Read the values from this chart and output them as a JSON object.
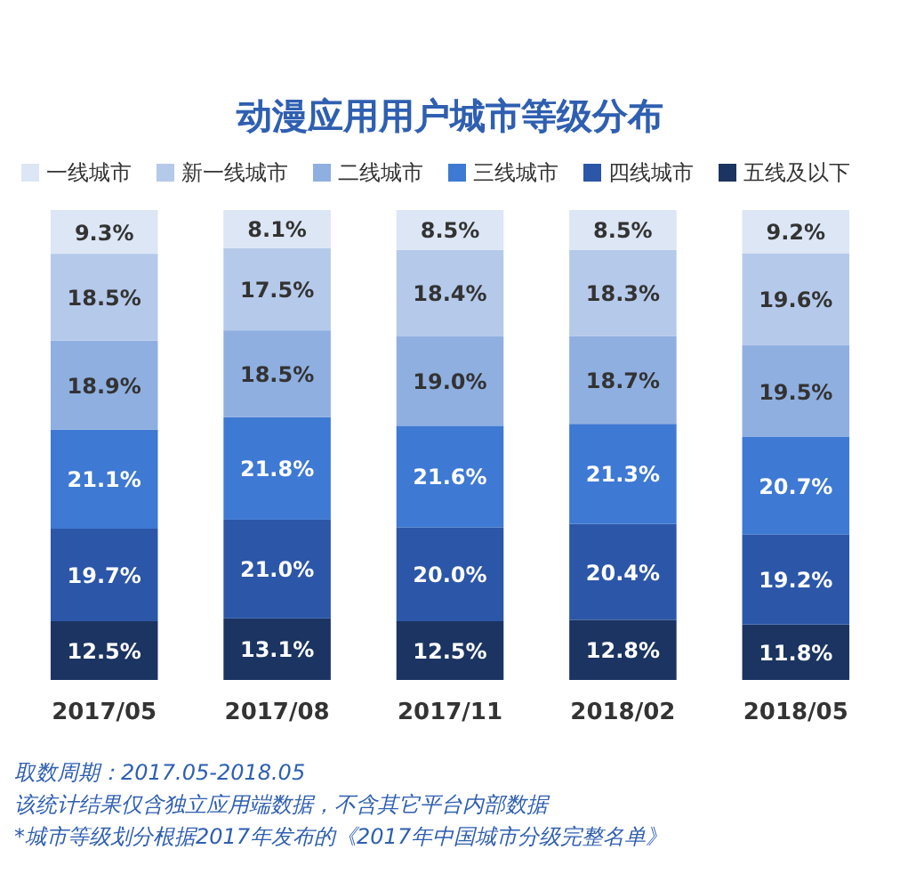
{
  "chart_data": {
    "type": "bar",
    "stacked": true,
    "legend": "top",
    "title": "动漫应用用户城市等级分布",
    "categories": [
      "2017/05",
      "2017/08",
      "2017/11",
      "2018/02",
      "2018/05"
    ],
    "series": [
      {
        "name": "五线及以下",
        "color": "#1b3461",
        "values": [
          12.5,
          13.1,
          12.5,
          12.8,
          11.8
        ],
        "value_labels": [
          "12.5%",
          "13.1%",
          "12.5%",
          "12.8%",
          "11.8%"
        ]
      },
      {
        "name": "四线城市",
        "color": "#2c56a8",
        "values": [
          19.7,
          21.0,
          20.0,
          20.4,
          19.2
        ],
        "value_labels": [
          "19.7%",
          "21.0%",
          "20.0%",
          "20.4%",
          "19.2%"
        ]
      },
      {
        "name": "三线城市",
        "color": "#3e79d3",
        "values": [
          21.1,
          21.8,
          21.6,
          21.3,
          20.7
        ],
        "value_labels": [
          "21.1%",
          "21.8%",
          "21.6%",
          "21.3%",
          "20.7%"
        ]
      },
      {
        "name": "二线城市",
        "color": "#8fafe0",
        "values": [
          18.9,
          18.5,
          19.0,
          18.7,
          19.5
        ],
        "value_labels": [
          "18.9%",
          "18.5%",
          "19.0%",
          "18.7%",
          "19.5%"
        ]
      },
      {
        "name": "新一线城市",
        "color": "#b5c9ea",
        "values": [
          18.5,
          17.5,
          18.4,
          18.3,
          19.6
        ],
        "value_labels": [
          "18.5%",
          "17.5%",
          "18.4%",
          "18.3%",
          "19.6%"
        ]
      },
      {
        "name": "一线城市",
        "color": "#dce6f5",
        "values": [
          9.3,
          8.1,
          8.5,
          8.5,
          9.2
        ],
        "value_labels": [
          "9.3%",
          "8.1%",
          "8.5%",
          "8.5%",
          "9.2%"
        ]
      }
    ],
    "annotations": [
      "取数周期：2017.05-2018.05",
      "该统计结果仅含独立应用端数据，不含其它平台内部数据",
      "*城市等级划分根据2017年发布的《2017年中国城市分级完整名单》"
    ]
  }
}
